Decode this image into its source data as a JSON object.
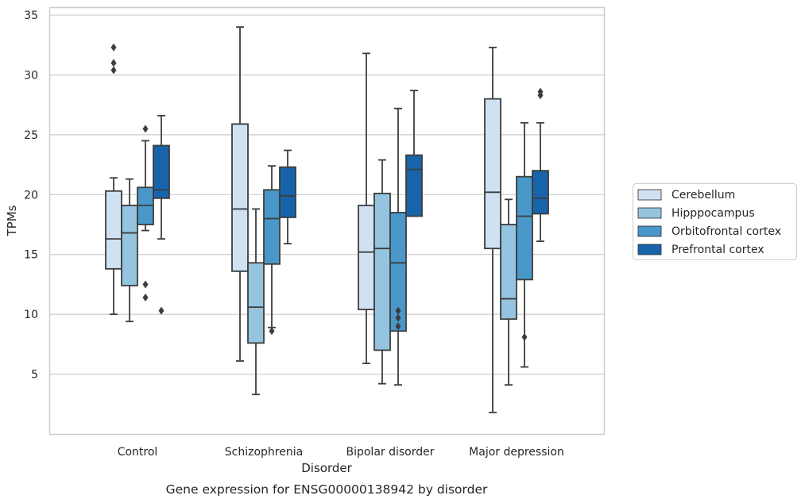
{
  "chart_data": {
    "type": "box",
    "title": "",
    "caption": "Gene expression for ENSG00000138942 by disorder",
    "xlabel": "Disorder",
    "ylabel": "TPMs",
    "ylim": [
      0,
      35.6
    ],
    "yticks": [
      5,
      10,
      15,
      20,
      25,
      30,
      35
    ],
    "grid": "horizontal",
    "legend_position": "right",
    "categories": [
      "Control",
      "Schizophrenia",
      "Bipolar disorder",
      "Major depression"
    ],
    "series": [
      {
        "name": "Cerebellum",
        "color": "#d0e1f2",
        "boxes": [
          {
            "whislo": 10.0,
            "q1": 13.8,
            "med": 16.3,
            "q3": 20.3,
            "whishi": 21.4,
            "fliers": [
              30.4,
              31.0,
              32.3
            ]
          },
          {
            "whislo": 6.1,
            "q1": 13.6,
            "med": 18.8,
            "q3": 25.9,
            "whishi": 34.0,
            "fliers": []
          },
          {
            "whislo": 5.9,
            "q1": 10.4,
            "med": 15.2,
            "q3": 19.1,
            "whishi": 31.8,
            "fliers": []
          },
          {
            "whislo": 1.8,
            "q1": 15.5,
            "med": 20.2,
            "q3": 28.0,
            "whishi": 32.3,
            "fliers": []
          }
        ]
      },
      {
        "name": "Hipppocampus",
        "color": "#94c4df",
        "boxes": [
          {
            "whislo": 9.4,
            "q1": 12.4,
            "med": 16.8,
            "q3": 19.1,
            "whishi": 21.3,
            "fliers": []
          },
          {
            "whislo": 3.3,
            "q1": 7.6,
            "med": 10.6,
            "q3": 14.3,
            "whishi": 18.8,
            "fliers": []
          },
          {
            "whislo": 4.2,
            "q1": 7.0,
            "med": 15.5,
            "q3": 20.1,
            "whishi": 22.9,
            "fliers": []
          },
          {
            "whislo": 4.1,
            "q1": 9.6,
            "med": 11.3,
            "q3": 17.5,
            "whishi": 19.6,
            "fliers": []
          }
        ]
      },
      {
        "name": "Orbitofrontal cortex",
        "color": "#4a98c9",
        "boxes": [
          {
            "whislo": 17.0,
            "q1": 17.5,
            "med": 19.1,
            "q3": 20.6,
            "whishi": 24.5,
            "fliers": [
              11.4,
              12.5,
              25.5
            ]
          },
          {
            "whislo": 8.9,
            "q1": 14.2,
            "med": 18.0,
            "q3": 20.4,
            "whishi": 22.4,
            "fliers": [
              8.6
            ]
          },
          {
            "whislo": 4.1,
            "q1": 8.6,
            "med": 14.3,
            "q3": 18.5,
            "whishi": 27.2,
            "fliers": [
              9.0,
              9.7,
              10.3
            ]
          },
          {
            "whislo": 5.6,
            "q1": 12.9,
            "med": 18.2,
            "q3": 21.5,
            "whishi": 26.0,
            "fliers": [
              8.1
            ]
          }
        ]
      },
      {
        "name": "Prefrontal cortex",
        "color": "#1764ab",
        "boxes": [
          {
            "whislo": 16.3,
            "q1": 19.7,
            "med": 20.4,
            "q3": 24.1,
            "whishi": 26.6,
            "fliers": [
              10.3
            ]
          },
          {
            "whislo": 15.9,
            "q1": 18.1,
            "med": 19.9,
            "q3": 22.3,
            "whishi": 23.7,
            "fliers": []
          },
          {
            "whislo": 18.2,
            "q1": 18.2,
            "med": 22.1,
            "q3": 23.3,
            "whishi": 28.7,
            "fliers": []
          },
          {
            "whislo": 16.1,
            "q1": 18.4,
            "med": 19.7,
            "q3": 22.0,
            "whishi": 26.0,
            "fliers": [
              28.3,
              28.6
            ]
          }
        ]
      }
    ]
  },
  "colors": {
    "grid": "#cccccc",
    "frame": "#cccccc",
    "line": "#3d3d3d",
    "text": "#262626"
  }
}
